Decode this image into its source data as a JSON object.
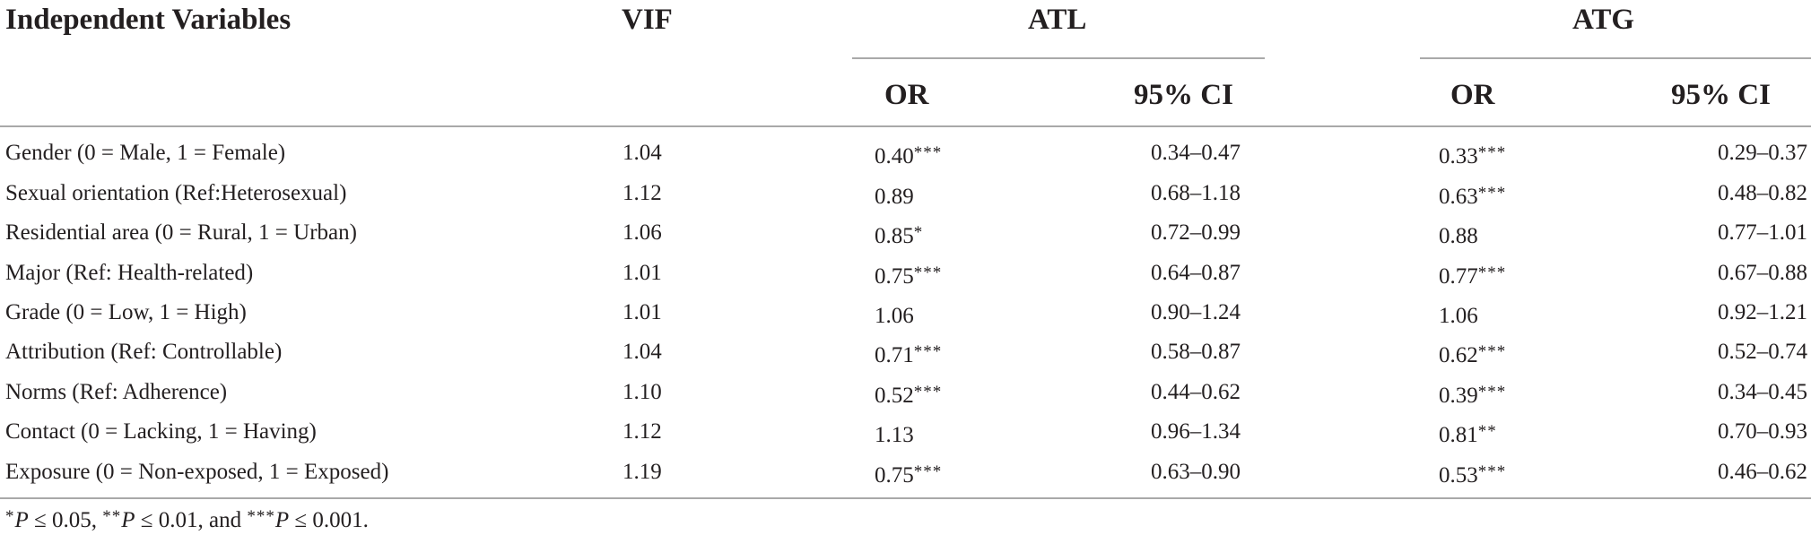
{
  "header": {
    "variables": "Independent Variables",
    "vif": "VIF",
    "group1": "ATL",
    "group2": "ATG",
    "or1": "OR",
    "ci1": "95% CI",
    "or2": "OR",
    "ci2": "95% CI"
  },
  "rows": [
    {
      "variable": "Gender (0 = Male, 1 = Female)",
      "vif": "1.04",
      "atl_or": "0.40",
      "atl_sig": "***",
      "atl_ci": "0.34–0.47",
      "atg_or": "0.33",
      "atg_sig": "***",
      "atg_ci": "0.29–0.37"
    },
    {
      "variable": "Sexual orientation (Ref:Heterosexual)",
      "vif": "1.12",
      "atl_or": "0.89",
      "atl_sig": "",
      "atl_ci": "0.68–1.18",
      "atg_or": "0.63",
      "atg_sig": "***",
      "atg_ci": "0.48–0.82"
    },
    {
      "variable": "Residential area (0 = Rural, 1 = Urban)",
      "vif": "1.06",
      "atl_or": "0.85",
      "atl_sig": "*",
      "atl_ci": "0.72–0.99",
      "atg_or": "0.88",
      "atg_sig": "",
      "atg_ci": "0.77–1.01"
    },
    {
      "variable": "Major (Ref: Health-related)",
      "vif": "1.01",
      "atl_or": "0.75",
      "atl_sig": "***",
      "atl_ci": "0.64–0.87",
      "atg_or": "0.77",
      "atg_sig": "***",
      "atg_ci": "0.67–0.88"
    },
    {
      "variable": "Grade (0 = Low, 1 = High)",
      "vif": "1.01",
      "atl_or": "1.06",
      "atl_sig": "",
      "atl_ci": "0.90–1.24",
      "atg_or": "1.06",
      "atg_sig": "",
      "atg_ci": "0.92–1.21"
    },
    {
      "variable": "Attribution (Ref: Controllable)",
      "vif": "1.04",
      "atl_or": "0.71",
      "atl_sig": "***",
      "atl_ci": "0.58–0.87",
      "atg_or": "0.62",
      "atg_sig": "***",
      "atg_ci": "0.52–0.74"
    },
    {
      "variable": "Norms (Ref: Adherence)",
      "vif": "1.10",
      "atl_or": "0.52",
      "atl_sig": "***",
      "atl_ci": "0.44–0.62",
      "atg_or": "0.39",
      "atg_sig": "***",
      "atg_ci": "0.34–0.45"
    },
    {
      "variable": "Contact (0 = Lacking, 1 = Having)",
      "vif": "1.12",
      "atl_or": "1.13",
      "atl_sig": "",
      "atl_ci": "0.96–1.34",
      "atg_or": "0.81",
      "atg_sig": "**",
      "atg_ci": "0.70–0.93"
    },
    {
      "variable": "Exposure (0 = Non-exposed, 1 = Exposed)",
      "vif": "1.19",
      "atl_or": "0.75",
      "atl_sig": "***",
      "atl_ci": "0.63–0.90",
      "atg_or": "0.53",
      "atg_sig": "***",
      "atg_ci": "0.46–0.62"
    }
  ],
  "footnote": {
    "s1": "*",
    "p1": "P",
    "t1": " ≤ 0.05, ",
    "s2": "**",
    "p2": "P",
    "t2": " ≤ 0.01, and ",
    "s3": "***",
    "p3": "P",
    "t3": " ≤ 0.001."
  }
}
